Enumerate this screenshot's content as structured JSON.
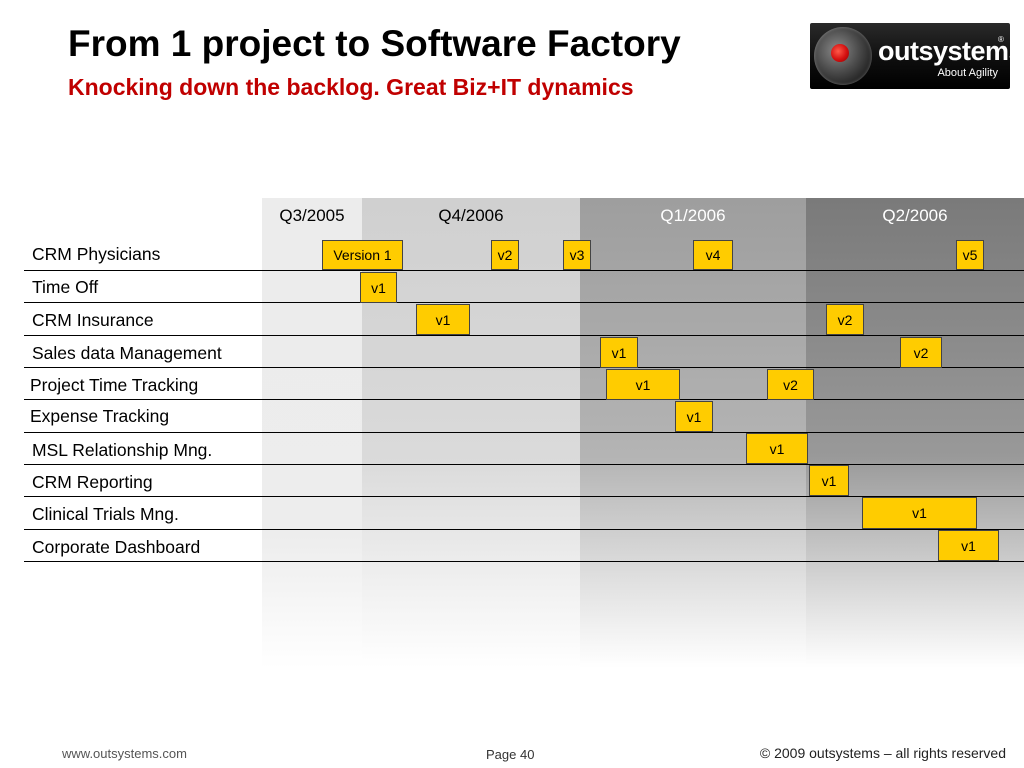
{
  "header": {
    "title": "From 1 project to Software Factory",
    "subtitle": "Knocking down the backlog. Great Biz+IT dynamics"
  },
  "logo": {
    "wordmark": "outsystems",
    "registered_mark": "®",
    "tagline": "About Agility"
  },
  "timeline": {
    "quarters": [
      "Q3/2005",
      "Q4/2006",
      "Q1/2006",
      "Q2/2006"
    ],
    "projects": [
      {
        "name": "CRM Physicians",
        "releases": [
          "Version 1",
          "v2",
          "v3",
          "v4",
          "v5"
        ]
      },
      {
        "name": "Time Off",
        "releases": [
          "v1"
        ]
      },
      {
        "name": "CRM Insurance",
        "releases": [
          "v1",
          "v2"
        ]
      },
      {
        "name": "Sales data Management",
        "releases": [
          "v1",
          "v2"
        ]
      },
      {
        "name": "Project Time Tracking",
        "releases": [
          "v1",
          "v2"
        ]
      },
      {
        "name": "Expense Tracking",
        "releases": [
          "v1"
        ]
      },
      {
        "name": "MSL Relationship Mng.",
        "releases": [
          "v1"
        ]
      },
      {
        "name": "CRM Reporting",
        "releases": [
          "v1"
        ]
      },
      {
        "name": "Clinical Trials Mng.",
        "releases": [
          "v1"
        ]
      },
      {
        "name": "Corporate Dashboard",
        "releases": [
          "v1"
        ]
      }
    ]
  },
  "footer": {
    "website": "www.outsystems.com",
    "page": "Page 40",
    "copyright": "© 2009 outsystems – all rights reserved"
  }
}
